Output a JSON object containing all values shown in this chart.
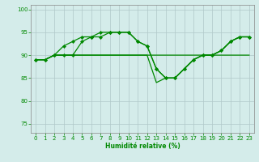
{
  "title": "",
  "xlabel": "Humidité relative (%)",
  "ylabel": "",
  "bg_color": "#d4ecea",
  "grid_color": "#b0c8c8",
  "line_color": "#008800",
  "marker_color": "#008800",
  "xlim": [
    -0.5,
    23.5
  ],
  "ylim": [
    73,
    101
  ],
  "yticks": [
    75,
    80,
    85,
    90,
    95,
    100
  ],
  "xticks": [
    0,
    1,
    2,
    3,
    4,
    5,
    6,
    7,
    8,
    9,
    10,
    11,
    12,
    13,
    14,
    15,
    16,
    17,
    18,
    19,
    20,
    21,
    22,
    23
  ],
  "series": [
    {
      "y": [
        89,
        89,
        90,
        92,
        93,
        94,
        94,
        95,
        95,
        95,
        95,
        93,
        92,
        87,
        85,
        85,
        87,
        89,
        90,
        90,
        91,
        93,
        94,
        94
      ],
      "marker": true
    },
    {
      "y": [
        89,
        89,
        90,
        90,
        90,
        93,
        94,
        94,
        95,
        95,
        95,
        93,
        92,
        87,
        85,
        85,
        87,
        89,
        90,
        90,
        91,
        93,
        94,
        94
      ],
      "marker": true
    },
    {
      "y": [
        89,
        89,
        90,
        90,
        90,
        90,
        90,
        90,
        90,
        90,
        90,
        90,
        90,
        84,
        85,
        85,
        87,
        89,
        90,
        90,
        91,
        93,
        94,
        94
      ],
      "marker": false
    },
    {
      "y": [
        89,
        89,
        90,
        90,
        90,
        90,
        90,
        90,
        90,
        90,
        90,
        90,
        90,
        90,
        90,
        90,
        90,
        90,
        90,
        90,
        90,
        90,
        90,
        90
      ],
      "marker": false
    }
  ]
}
